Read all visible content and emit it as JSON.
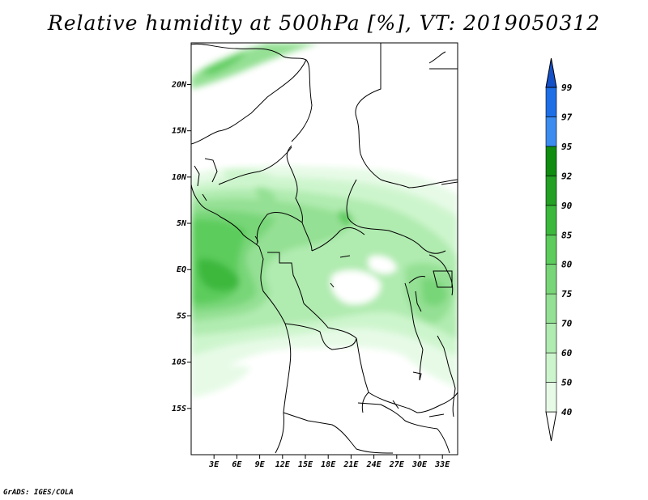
{
  "title": "Relative humidity at 500hPa [%], VT: 2019050312",
  "credit": "GrADS: IGES/COLA",
  "map": {
    "lon_range": [
      0,
      35
    ],
    "lat_range": [
      -20,
      24.5
    ],
    "lat_ticks": [
      {
        "value": 20,
        "label": "20N"
      },
      {
        "value": 15,
        "label": "15N"
      },
      {
        "value": 10,
        "label": "10N"
      },
      {
        "value": 5,
        "label": "5N"
      },
      {
        "value": 0,
        "label": "EQ"
      },
      {
        "value": -5,
        "label": "5S"
      },
      {
        "value": -10,
        "label": "10S"
      },
      {
        "value": -15,
        "label": "15S"
      }
    ],
    "lon_ticks": [
      {
        "value": 3,
        "label": "3E"
      },
      {
        "value": 6,
        "label": "6E"
      },
      {
        "value": 9,
        "label": "9E"
      },
      {
        "value": 12,
        "label": "12E"
      },
      {
        "value": 15,
        "label": "15E"
      },
      {
        "value": 18,
        "label": "18E"
      },
      {
        "value": 21,
        "label": "21E"
      },
      {
        "value": 24,
        "label": "24E"
      },
      {
        "value": 27,
        "label": "27E"
      },
      {
        "value": 30,
        "label": "30E"
      },
      {
        "value": 33,
        "label": "33E"
      }
    ]
  },
  "colorbar": {
    "levels": [
      "40",
      "50",
      "60",
      "70",
      "75",
      "80",
      "85",
      "90",
      "92",
      "95",
      "97",
      "99"
    ],
    "colors": [
      "#ffffff",
      "#e6fae6",
      "#cdf5cd",
      "#b0ebb0",
      "#94e094",
      "#78d678",
      "#5ccc5c",
      "#3cb83c",
      "#24a024",
      "#108c10",
      "#3c8cf0",
      "#1e6ee6",
      "#1450c8"
    ]
  }
}
